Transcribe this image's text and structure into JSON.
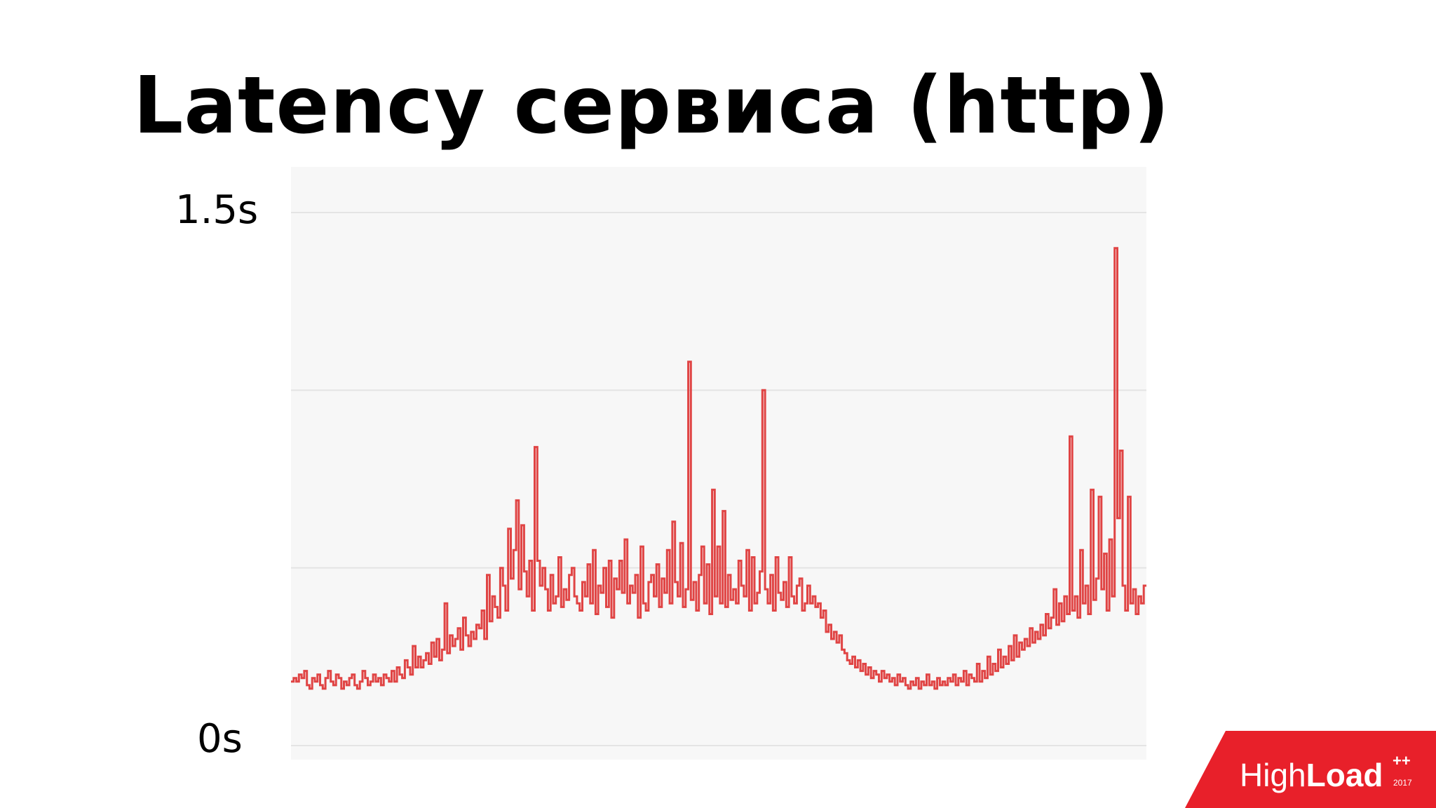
{
  "slide": {
    "title": "Latency сервиса (http)"
  },
  "logo": {
    "light": "High",
    "bold": "Load",
    "plus": "++",
    "year": "2017",
    "color": "#e8202a"
  },
  "chart_data": {
    "type": "line",
    "ylim": [
      0,
      1.5
    ],
    "yticks": [
      {
        "value": 1.5,
        "label": "1.5s"
      },
      {
        "value": 0,
        "label": "0s"
      }
    ],
    "grid_values": [
      0,
      0.5,
      1.0,
      1.5
    ],
    "grid": true,
    "line_color": "#e04444",
    "background": "#f7f7f7",
    "series": [
      {
        "values": [
          0.18,
          0.19,
          0.18,
          0.2,
          0.19,
          0.21,
          0.17,
          0.16,
          0.19,
          0.18,
          0.2,
          0.17,
          0.16,
          0.19,
          0.21,
          0.18,
          0.17,
          0.2,
          0.19,
          0.16,
          0.18,
          0.17,
          0.19,
          0.2,
          0.17,
          0.16,
          0.18,
          0.21,
          0.19,
          0.17,
          0.18,
          0.2,
          0.18,
          0.19,
          0.17,
          0.2,
          0.19,
          0.18,
          0.21,
          0.18,
          0.22,
          0.2,
          0.19,
          0.24,
          0.22,
          0.2,
          0.28,
          0.22,
          0.25,
          0.22,
          0.24,
          0.26,
          0.23,
          0.29,
          0.25,
          0.3,
          0.24,
          0.27,
          0.4,
          0.26,
          0.31,
          0.28,
          0.3,
          0.33,
          0.27,
          0.36,
          0.31,
          0.28,
          0.32,
          0.3,
          0.34,
          0.33,
          0.38,
          0.3,
          0.48,
          0.35,
          0.42,
          0.39,
          0.36,
          0.5,
          0.45,
          0.38,
          0.61,
          0.47,
          0.55,
          0.69,
          0.44,
          0.62,
          0.49,
          0.42,
          0.52,
          0.38,
          0.84,
          0.52,
          0.45,
          0.5,
          0.44,
          0.38,
          0.48,
          0.4,
          0.42,
          0.53,
          0.39,
          0.44,
          0.41,
          0.48,
          0.5,
          0.42,
          0.4,
          0.38,
          0.46,
          0.42,
          0.51,
          0.4,
          0.55,
          0.37,
          0.45,
          0.43,
          0.5,
          0.39,
          0.52,
          0.36,
          0.47,
          0.44,
          0.52,
          0.43,
          0.58,
          0.4,
          0.45,
          0.43,
          0.48,
          0.36,
          0.56,
          0.4,
          0.38,
          0.46,
          0.48,
          0.42,
          0.51,
          0.39,
          0.47,
          0.43,
          0.55,
          0.4,
          0.63,
          0.46,
          0.42,
          0.57,
          0.39,
          0.44,
          1.08,
          0.41,
          0.46,
          0.38,
          0.48,
          0.56,
          0.4,
          0.51,
          0.37,
          0.72,
          0.42,
          0.56,
          0.4,
          0.66,
          0.39,
          0.48,
          0.41,
          0.44,
          0.4,
          0.52,
          0.45,
          0.42,
          0.55,
          0.38,
          0.53,
          0.4,
          0.43,
          0.49,
          1.0,
          0.44,
          0.4,
          0.48,
          0.38,
          0.53,
          0.43,
          0.41,
          0.46,
          0.39,
          0.53,
          0.42,
          0.4,
          0.45,
          0.47,
          0.38,
          0.4,
          0.45,
          0.4,
          0.42,
          0.39,
          0.4,
          0.36,
          0.38,
          0.32,
          0.34,
          0.3,
          0.32,
          0.29,
          0.31,
          0.27,
          0.26,
          0.24,
          0.23,
          0.25,
          0.22,
          0.24,
          0.21,
          0.23,
          0.2,
          0.22,
          0.19,
          0.21,
          0.2,
          0.18,
          0.21,
          0.19,
          0.2,
          0.18,
          0.19,
          0.17,
          0.2,
          0.18,
          0.19,
          0.17,
          0.16,
          0.18,
          0.17,
          0.19,
          0.16,
          0.18,
          0.17,
          0.2,
          0.17,
          0.18,
          0.16,
          0.19,
          0.17,
          0.18,
          0.17,
          0.19,
          0.18,
          0.2,
          0.17,
          0.19,
          0.18,
          0.21,
          0.17,
          0.2,
          0.19,
          0.18,
          0.23,
          0.18,
          0.21,
          0.19,
          0.25,
          0.2,
          0.23,
          0.21,
          0.27,
          0.22,
          0.25,
          0.23,
          0.28,
          0.24,
          0.31,
          0.25,
          0.29,
          0.27,
          0.3,
          0.28,
          0.33,
          0.29,
          0.32,
          0.3,
          0.34,
          0.31,
          0.37,
          0.33,
          0.36,
          0.44,
          0.34,
          0.4,
          0.35,
          0.42,
          0.37,
          0.87,
          0.38,
          0.42,
          0.36,
          0.55,
          0.4,
          0.45,
          0.37,
          0.72,
          0.41,
          0.47,
          0.7,
          0.44,
          0.54,
          0.38,
          0.58,
          0.42,
          1.4,
          0.64,
          0.83,
          0.45,
          0.38,
          0.7,
          0.4,
          0.44,
          0.37,
          0.42,
          0.4,
          0.45
        ]
      }
    ]
  }
}
